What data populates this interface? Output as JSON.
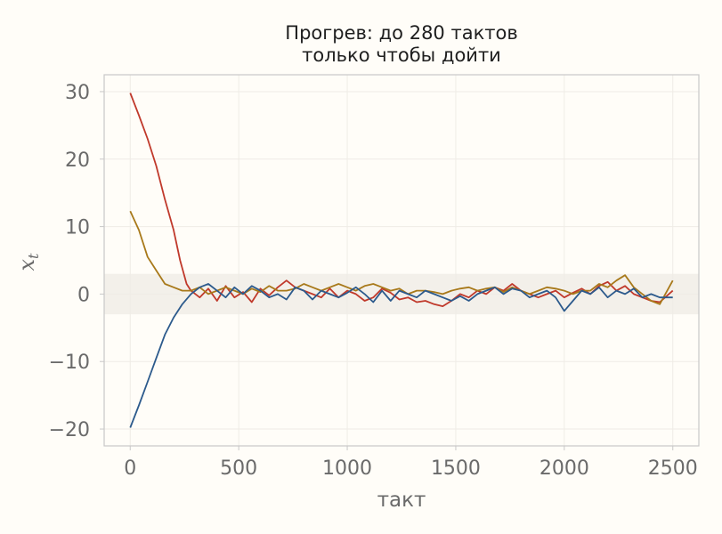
{
  "chart_data": {
    "type": "line",
    "title": "Прогрев: до 280 тактов\nтолько чтобы дойти",
    "xlabel": "такт",
    "ylabel": "x_t",
    "xlim": [
      -120,
      2620
    ],
    "ylim": [
      -22.5,
      32.5
    ],
    "xticks": [
      0,
      500,
      1000,
      1500,
      2000,
      2500
    ],
    "yticks": [
      -20,
      -10,
      0,
      10,
      20,
      30
    ],
    "grid": true,
    "legend": "none",
    "band": {
      "y0": -3,
      "y1": 3,
      "color": "#f3f0ea"
    },
    "colors": {
      "background": "#fffdf8",
      "frame": "#c8c8c8",
      "grid": "#efece6"
    },
    "series": [
      {
        "color": "#c0392b",
        "x": [
          0,
          40,
          80,
          120,
          160,
          200,
          230,
          260,
          280,
          320,
          360,
          400,
          440,
          480,
          520,
          560,
          600,
          640,
          680,
          720,
          760,
          800,
          840,
          880,
          920,
          960,
          1000,
          1040,
          1080,
          1120,
          1160,
          1200,
          1240,
          1280,
          1320,
          1360,
          1400,
          1440,
          1480,
          1520,
          1560,
          1600,
          1640,
          1680,
          1720,
          1760,
          1800,
          1840,
          1880,
          1920,
          1960,
          2000,
          2040,
          2080,
          2120,
          2160,
          2200,
          2240,
          2280,
          2320,
          2360,
          2400,
          2440,
          2500
        ],
        "y": [
          29.8,
          26.5,
          23.0,
          19.0,
          14.0,
          9.5,
          5.0,
          1.5,
          0.5,
          -0.5,
          0.8,
          -1.0,
          1.2,
          -0.5,
          0.3,
          -1.2,
          0.8,
          -0.2,
          1.0,
          2.0,
          1.0,
          0.5,
          0.0,
          -0.5,
          0.8,
          -0.5,
          0.5,
          0.0,
          -1.0,
          -0.5,
          0.8,
          0.2,
          -0.8,
          -0.5,
          -1.2,
          -1.0,
          -1.5,
          -1.8,
          -1.0,
          0.0,
          -0.5,
          0.5,
          0.0,
          1.0,
          0.5,
          1.5,
          0.5,
          0.0,
          -0.5,
          0.0,
          0.5,
          -0.5,
          0.2,
          0.8,
          0.0,
          1.2,
          1.8,
          0.5,
          1.2,
          0.0,
          -0.5,
          -1.0,
          -1.2,
          0.5
        ]
      },
      {
        "color": "#a8791a",
        "x": [
          0,
          40,
          80,
          120,
          160,
          200,
          240,
          280,
          320,
          360,
          400,
          440,
          480,
          520,
          560,
          600,
          640,
          680,
          720,
          760,
          800,
          840,
          880,
          920,
          960,
          1000,
          1040,
          1080,
          1120,
          1160,
          1200,
          1240,
          1280,
          1320,
          1360,
          1400,
          1440,
          1480,
          1520,
          1560,
          1600,
          1640,
          1680,
          1720,
          1760,
          1800,
          1840,
          1880,
          1920,
          1960,
          2000,
          2040,
          2080,
          2120,
          2160,
          2200,
          2240,
          2280,
          2320,
          2360,
          2400,
          2440,
          2500
        ],
        "y": [
          12.3,
          9.5,
          5.5,
          3.5,
          1.5,
          1.0,
          0.5,
          0.5,
          1.0,
          0.0,
          0.5,
          1.0,
          0.5,
          0.0,
          0.8,
          0.3,
          1.2,
          0.5,
          0.5,
          0.8,
          1.5,
          1.0,
          0.5,
          1.0,
          1.5,
          1.0,
          0.5,
          1.2,
          1.5,
          1.0,
          0.5,
          0.8,
          0.0,
          0.5,
          0.5,
          0.3,
          0.0,
          0.5,
          0.8,
          1.0,
          0.5,
          0.8,
          1.0,
          0.3,
          1.0,
          0.5,
          0.0,
          0.5,
          1.0,
          0.8,
          0.5,
          0.0,
          0.5,
          0.5,
          1.5,
          1.0,
          2.0,
          2.8,
          1.0,
          0.0,
          -1.0,
          -1.5,
          2.0
        ]
      },
      {
        "color": "#2c5a8c",
        "x": [
          0,
          40,
          80,
          120,
          160,
          200,
          240,
          280,
          320,
          360,
          400,
          440,
          480,
          520,
          560,
          600,
          640,
          680,
          720,
          760,
          800,
          840,
          880,
          920,
          960,
          1000,
          1040,
          1080,
          1120,
          1160,
          1200,
          1240,
          1280,
          1320,
          1360,
          1400,
          1440,
          1480,
          1520,
          1560,
          1600,
          1640,
          1680,
          1720,
          1760,
          1800,
          1840,
          1880,
          1920,
          1960,
          2000,
          2040,
          2080,
          2120,
          2160,
          2200,
          2240,
          2280,
          2320,
          2360,
          2400,
          2440,
          2500
        ],
        "y": [
          -19.8,
          -16.5,
          -13.0,
          -9.5,
          -6.0,
          -3.5,
          -1.5,
          0.0,
          1.0,
          1.5,
          0.5,
          -0.5,
          1.0,
          0.0,
          1.2,
          0.5,
          -0.5,
          0.0,
          -0.8,
          1.0,
          0.5,
          -0.8,
          0.5,
          0.0,
          -0.5,
          0.2,
          1.0,
          0.0,
          -1.2,
          0.5,
          -1.0,
          0.5,
          0.0,
          -0.5,
          0.5,
          0.0,
          -0.5,
          -1.0,
          -0.3,
          -1.0,
          0.0,
          0.5,
          1.0,
          0.0,
          0.8,
          0.5,
          -0.5,
          0.0,
          0.5,
          -0.5,
          -2.5,
          -1.0,
          0.5,
          0.0,
          1.0,
          -0.5,
          0.5,
          0.0,
          0.8,
          -0.5,
          0.0,
          -0.5,
          -0.5
        ]
      }
    ]
  }
}
